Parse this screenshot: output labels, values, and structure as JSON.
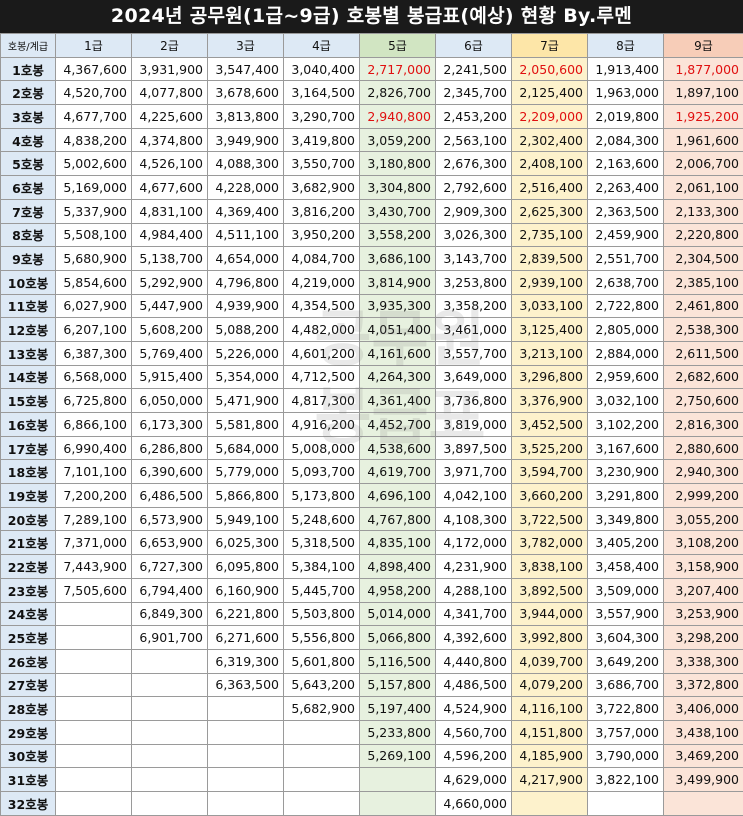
{
  "title": "2024년 공무원(1급~9급) 호봉별 봉급표(예상) 현황 By.루멘",
  "corner_label": "호봉/계급",
  "grades": [
    "1급",
    "2급",
    "3급",
    "4급",
    "5급",
    "6급",
    "7급",
    "8급",
    "9급"
  ],
  "highlight_color": "#e01010",
  "watermark_lines": [
    "공무원",
    "봉급표"
  ],
  "rows": [
    {
      "label": "1호봉",
      "values": [
        "4,367,600",
        "3,931,900",
        "3,547,400",
        "3,040,400",
        "2,717,000",
        "2,241,500",
        "2,050,600",
        "1,913,400",
        "1,877,000"
      ],
      "red": [
        4,
        6,
        8
      ]
    },
    {
      "label": "2호봉",
      "values": [
        "4,520,700",
        "4,077,800",
        "3,678,600",
        "3,164,500",
        "2,826,700",
        "2,345,700",
        "2,125,400",
        "1,963,000",
        "1,897,100"
      ],
      "red": []
    },
    {
      "label": "3호봉",
      "values": [
        "4,677,700",
        "4,225,600",
        "3,813,800",
        "3,290,700",
        "2,940,800",
        "2,453,200",
        "2,209,000",
        "2,019,800",
        "1,925,200"
      ],
      "red": [
        4,
        6,
        8
      ]
    },
    {
      "label": "4호봉",
      "values": [
        "4,838,200",
        "4,374,800",
        "3,949,900",
        "3,419,800",
        "3,059,200",
        "2,563,100",
        "2,302,400",
        "2,084,300",
        "1,961,600"
      ],
      "red": []
    },
    {
      "label": "5호봉",
      "values": [
        "5,002,600",
        "4,526,100",
        "4,088,300",
        "3,550,700",
        "3,180,800",
        "2,676,300",
        "2,408,100",
        "2,163,600",
        "2,006,700"
      ],
      "red": []
    },
    {
      "label": "6호봉",
      "values": [
        "5,169,000",
        "4,677,600",
        "4,228,000",
        "3,682,900",
        "3,304,800",
        "2,792,600",
        "2,516,400",
        "2,263,400",
        "2,061,100"
      ],
      "red": []
    },
    {
      "label": "7호봉",
      "values": [
        "5,337,900",
        "4,831,100",
        "4,369,400",
        "3,816,200",
        "3,430,700",
        "2,909,300",
        "2,625,300",
        "2,363,500",
        "2,133,300"
      ],
      "red": []
    },
    {
      "label": "8호봉",
      "values": [
        "5,508,100",
        "4,984,400",
        "4,511,100",
        "3,950,200",
        "3,558,200",
        "3,026,300",
        "2,735,100",
        "2,459,900",
        "2,220,800"
      ],
      "red": []
    },
    {
      "label": "9호봉",
      "values": [
        "5,680,900",
        "5,138,700",
        "4,654,000",
        "4,084,700",
        "3,686,100",
        "3,143,700",
        "2,839,500",
        "2,551,700",
        "2,304,500"
      ],
      "red": []
    },
    {
      "label": "10호봉",
      "values": [
        "5,854,600",
        "5,292,900",
        "4,796,800",
        "4,219,000",
        "3,814,900",
        "3,253,800",
        "2,939,100",
        "2,638,700",
        "2,385,100"
      ],
      "red": []
    },
    {
      "label": "11호봉",
      "values": [
        "6,027,900",
        "5,447,900",
        "4,939,900",
        "4,354,500",
        "3,935,300",
        "3,358,200",
        "3,033,100",
        "2,722,800",
        "2,461,800"
      ],
      "red": []
    },
    {
      "label": "12호봉",
      "values": [
        "6,207,100",
        "5,608,200",
        "5,088,200",
        "4,482,000",
        "4,051,400",
        "3,461,000",
        "3,125,400",
        "2,805,000",
        "2,538,300"
      ],
      "red": []
    },
    {
      "label": "13호봉",
      "values": [
        "6,387,300",
        "5,769,400",
        "5,226,000",
        "4,601,200",
        "4,161,600",
        "3,557,700",
        "3,213,100",
        "2,884,000",
        "2,611,500"
      ],
      "red": []
    },
    {
      "label": "14호봉",
      "values": [
        "6,568,000",
        "5,915,400",
        "5,354,000",
        "4,712,500",
        "4,264,300",
        "3,649,000",
        "3,296,800",
        "2,959,600",
        "2,682,600"
      ],
      "red": []
    },
    {
      "label": "15호봉",
      "values": [
        "6,725,800",
        "6,050,000",
        "5,471,900",
        "4,817,300",
        "4,361,400",
        "3,736,800",
        "3,376,900",
        "3,032,100",
        "2,750,600"
      ],
      "red": []
    },
    {
      "label": "16호봉",
      "values": [
        "6,866,100",
        "6,173,300",
        "5,581,800",
        "4,916,200",
        "4,452,700",
        "3,819,000",
        "3,452,500",
        "3,102,200",
        "2,816,300"
      ],
      "red": []
    },
    {
      "label": "17호봉",
      "values": [
        "6,990,400",
        "6,286,800",
        "5,684,000",
        "5,008,000",
        "4,538,600",
        "3,897,500",
        "3,525,200",
        "3,167,600",
        "2,880,600"
      ],
      "red": []
    },
    {
      "label": "18호봉",
      "values": [
        "7,101,100",
        "6,390,600",
        "5,779,000",
        "5,093,700",
        "4,619,700",
        "3,971,700",
        "3,594,700",
        "3,230,900",
        "2,940,300"
      ],
      "red": []
    },
    {
      "label": "19호봉",
      "values": [
        "7,200,200",
        "6,486,500",
        "5,866,800",
        "5,173,800",
        "4,696,100",
        "4,042,100",
        "3,660,200",
        "3,291,800",
        "2,999,200"
      ],
      "red": []
    },
    {
      "label": "20호봉",
      "values": [
        "7,289,100",
        "6,573,900",
        "5,949,100",
        "5,248,600",
        "4,767,800",
        "4,108,300",
        "3,722,500",
        "3,349,800",
        "3,055,200"
      ],
      "red": []
    },
    {
      "label": "21호봉",
      "values": [
        "7,371,000",
        "6,653,900",
        "6,025,300",
        "5,318,500",
        "4,835,100",
        "4,172,000",
        "3,782,000",
        "3,405,200",
        "3,108,200"
      ],
      "red": []
    },
    {
      "label": "22호봉",
      "values": [
        "7,443,900",
        "6,727,300",
        "6,095,800",
        "5,384,100",
        "4,898,400",
        "4,231,900",
        "3,838,100",
        "3,458,400",
        "3,158,900"
      ],
      "red": []
    },
    {
      "label": "23호봉",
      "values": [
        "7,505,600",
        "6,794,400",
        "6,160,900",
        "5,445,700",
        "4,958,200",
        "4,288,100",
        "3,892,500",
        "3,509,000",
        "3,207,400"
      ],
      "red": []
    },
    {
      "label": "24호봉",
      "values": [
        "",
        "6,849,300",
        "6,221,800",
        "5,503,800",
        "5,014,000",
        "4,341,700",
        "3,944,000",
        "3,557,900",
        "3,253,900"
      ],
      "red": []
    },
    {
      "label": "25호봉",
      "values": [
        "",
        "6,901,700",
        "6,271,600",
        "5,556,800",
        "5,066,800",
        "4,392,600",
        "3,992,800",
        "3,604,300",
        "3,298,200"
      ],
      "red": []
    },
    {
      "label": "26호봉",
      "values": [
        "",
        "",
        "6,319,300",
        "5,601,800",
        "5,116,500",
        "4,440,800",
        "4,039,700",
        "3,649,200",
        "3,338,300"
      ],
      "red": []
    },
    {
      "label": "27호봉",
      "values": [
        "",
        "",
        "6,363,500",
        "5,643,200",
        "5,157,800",
        "4,486,500",
        "4,079,200",
        "3,686,700",
        "3,372,800"
      ],
      "red": []
    },
    {
      "label": "28호봉",
      "values": [
        "",
        "",
        "",
        "5,682,900",
        "5,197,400",
        "4,524,900",
        "4,116,100",
        "3,722,800",
        "3,406,000"
      ],
      "red": []
    },
    {
      "label": "29호봉",
      "values": [
        "",
        "",
        "",
        "",
        "5,233,800",
        "4,560,700",
        "4,151,800",
        "3,757,000",
        "3,438,100"
      ],
      "red": []
    },
    {
      "label": "30호봉",
      "values": [
        "",
        "",
        "",
        "",
        "5,269,100",
        "4,596,200",
        "4,185,900",
        "3,790,000",
        "3,469,200"
      ],
      "red": []
    },
    {
      "label": "31호봉",
      "values": [
        "",
        "",
        "",
        "",
        "",
        "4,629,000",
        "4,217,900",
        "3,822,100",
        "3,499,900"
      ],
      "red": []
    },
    {
      "label": "32호봉",
      "values": [
        "",
        "",
        "",
        "",
        "",
        "4,660,000",
        "",
        "",
        ""
      ],
      "red": []
    }
  ]
}
